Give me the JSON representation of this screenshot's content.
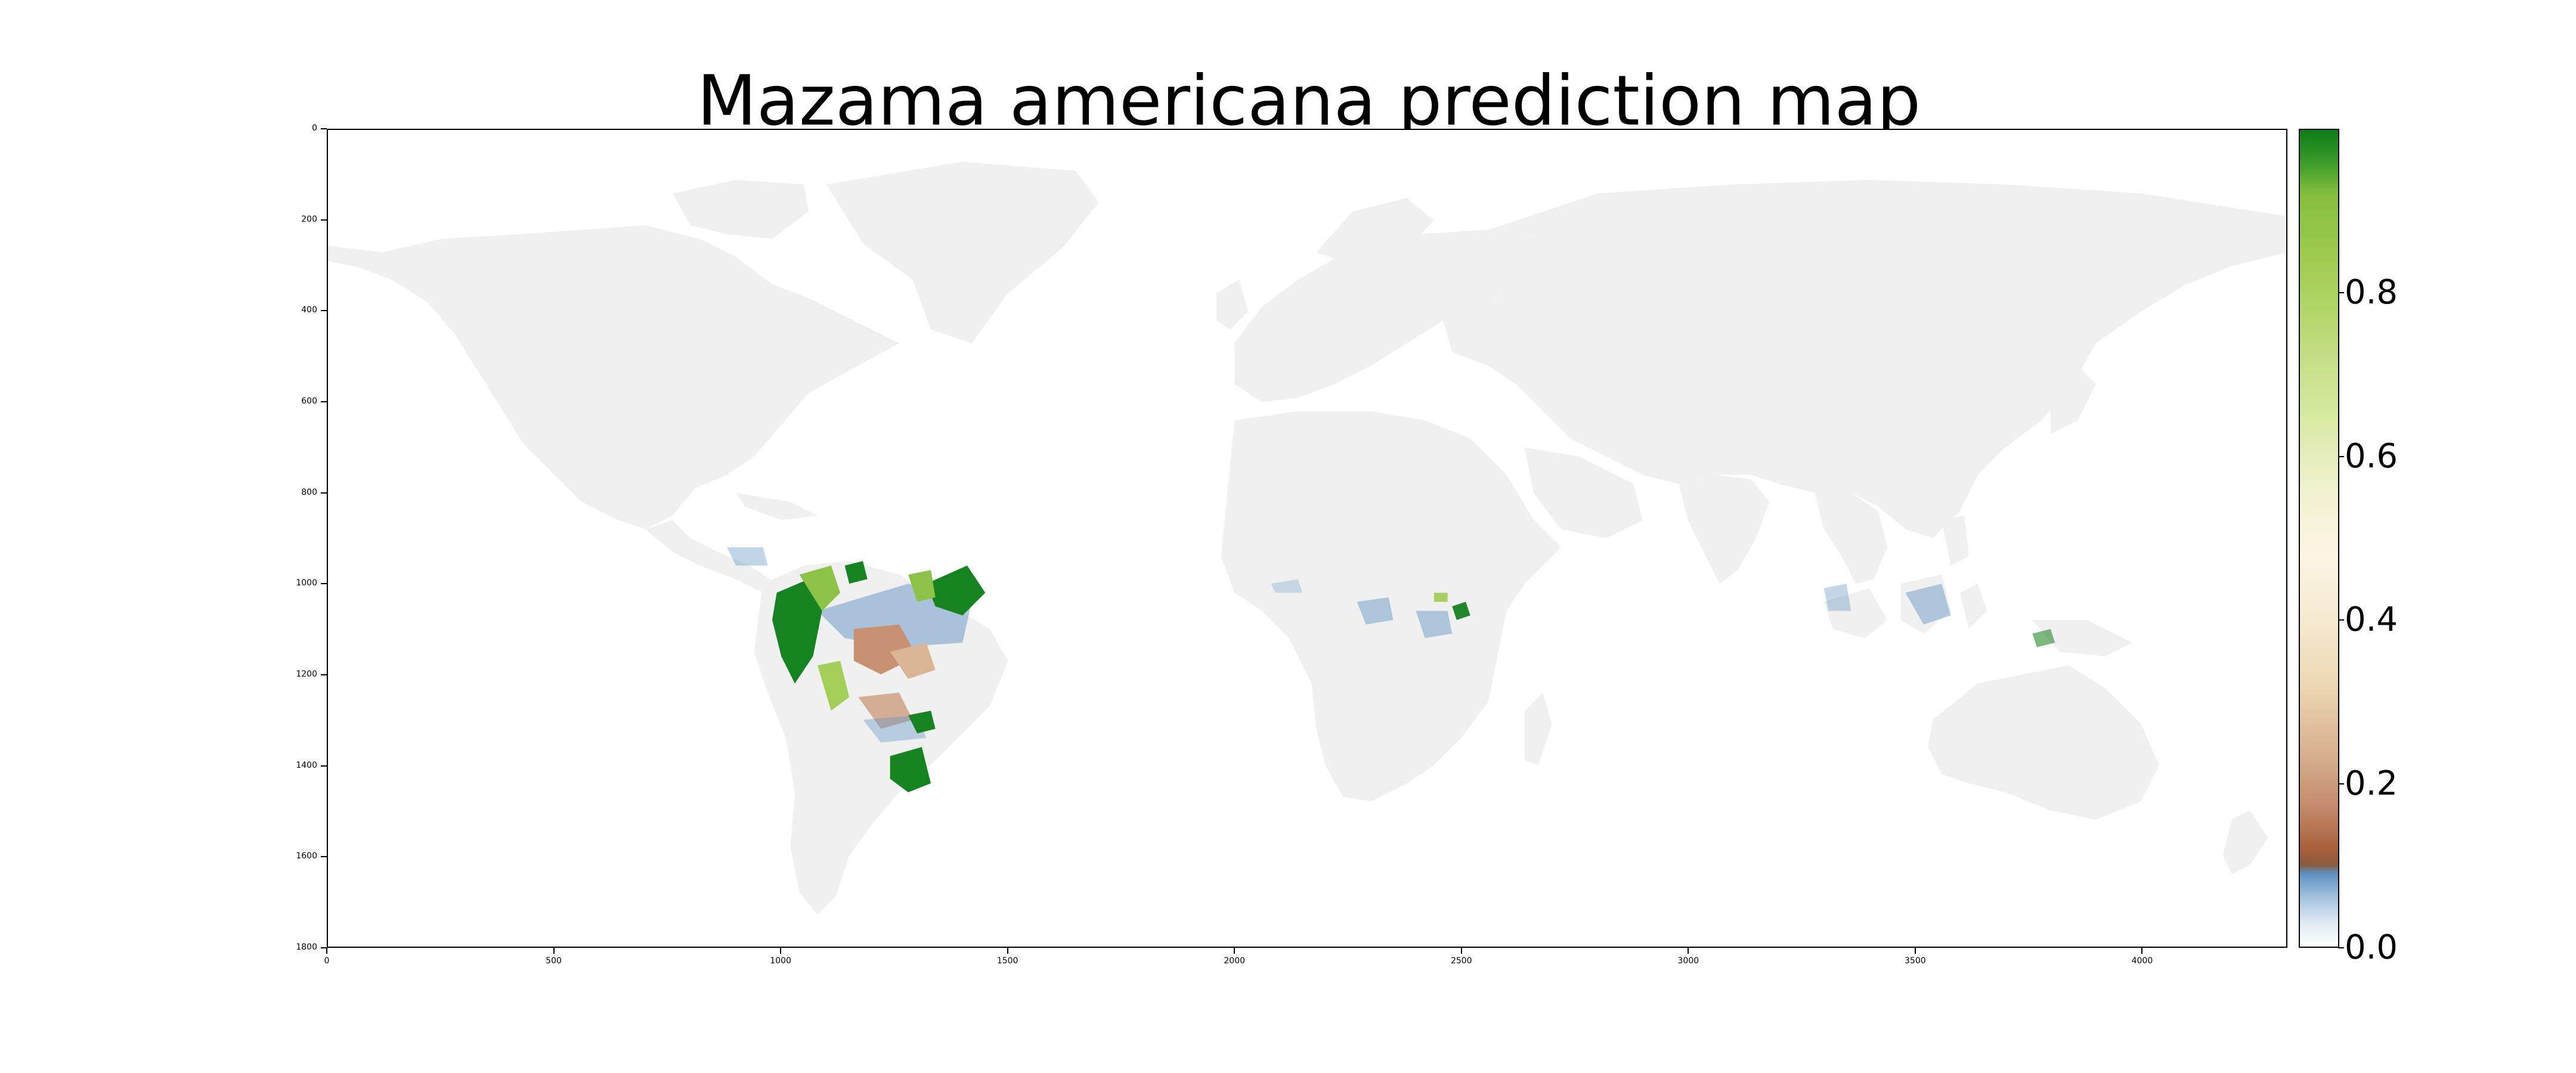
{
  "title": "Mazama americana prediction map",
  "axes": {
    "y_ticks": [
      "0",
      "200",
      "400",
      "600",
      "800",
      "1000",
      "1200",
      "1400",
      "1600",
      "1800"
    ],
    "x_ticks": [
      "0",
      "500",
      "1000",
      "1500",
      "2000",
      "2500",
      "3000",
      "3500",
      "4000"
    ],
    "x_range": [
      0,
      4320
    ],
    "y_range": [
      0,
      1800
    ]
  },
  "colorbar": {
    "ticks": [
      "0.0",
      "0.2",
      "0.4",
      "0.6",
      "0.8"
    ],
    "range": [
      0.0,
      1.0
    ]
  },
  "colors": {
    "land": "#f0f0f0",
    "high": "#0a7d16",
    "mid_high": "#9fcc4f",
    "mid": "#fbf5e3",
    "low_mid": "#c48b6a",
    "low": "#5b8fc0"
  }
}
